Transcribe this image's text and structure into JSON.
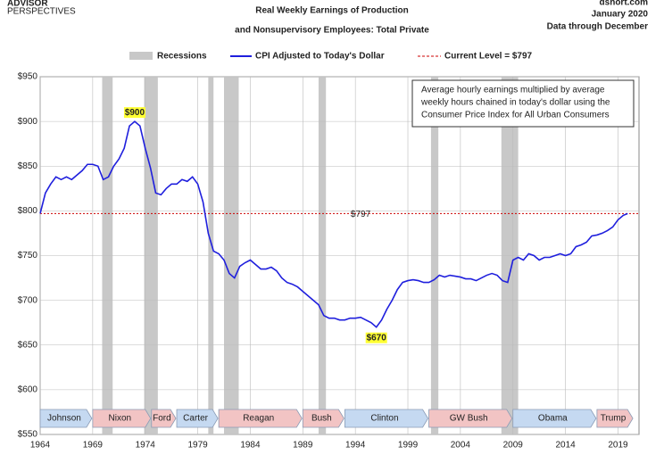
{
  "header": {
    "logo": [
      "ADVISOR",
      "PERSPECTIVES"
    ],
    "source": [
      "dshort.com",
      "January 2020",
      "Data through December"
    ]
  },
  "chart_data": {
    "type": "line",
    "title": [
      "Real Weekly Earnings of Production",
      "and Nonsupervisory Employees: Total Private"
    ],
    "legend": {
      "recessions": "Recessions",
      "current": "Current Level = $797"
    },
    "note": [
      "Average hourly earnings multiplied by average",
      "weekly hours chained in today's dollar using the",
      "Consumer Price Index for All Urban Consumers"
    ],
    "xlim": [
      1964,
      2021
    ],
    "xticks": [
      1964,
      1969,
      1974,
      1979,
      1984,
      1989,
      1994,
      1999,
      2004,
      2009,
      2014,
      2019
    ],
    "ylim": [
      550,
      950
    ],
    "yticks": [
      {
        "value": 550,
        "label": "$550"
      },
      {
        "value": 600,
        "label": "$600"
      },
      {
        "value": 650,
        "label": "$650"
      },
      {
        "value": 700,
        "label": "$700"
      },
      {
        "value": 750,
        "label": "$750"
      },
      {
        "value": 800,
        "label": "$800"
      },
      {
        "value": 850,
        "label": "$850"
      },
      {
        "value": 900,
        "label": "$900"
      },
      {
        "value": 950,
        "label": "$950"
      }
    ],
    "grid": true,
    "recessions": [
      [
        1969.9,
        1970.9
      ],
      [
        1973.9,
        1975.2
      ],
      [
        1980.0,
        1980.5
      ],
      [
        1981.5,
        1982.9
      ],
      [
        1990.5,
        1991.2
      ],
      [
        2001.2,
        2001.9
      ],
      [
        2007.9,
        2009.5
      ]
    ],
    "recession_color": "#c8c8c8",
    "reference": {
      "value": 797,
      "label": "$797",
      "color": "#cc0000"
    },
    "annotations": [
      {
        "text": "$900",
        "x": 1973,
        "y": 900
      },
      {
        "text": "$670",
        "x": 1996,
        "y": 670
      }
    ],
    "presidents": [
      {
        "name": "Johnson",
        "start": 1964,
        "end": 1969,
        "color": "#c5d9f1"
      },
      {
        "name": "Nixon",
        "start": 1969,
        "end": 1974.6,
        "color": "#f2c4c4"
      },
      {
        "name": "Ford",
        "start": 1974.6,
        "end": 1977,
        "color": "#f2c4c4"
      },
      {
        "name": "Carter",
        "start": 1977,
        "end": 1981,
        "color": "#c5d9f1"
      },
      {
        "name": "Reagan",
        "start": 1981,
        "end": 1989,
        "color": "#f2c4c4"
      },
      {
        "name": "Bush",
        "start": 1989,
        "end": 1993,
        "color": "#f2c4c4"
      },
      {
        "name": "Clinton",
        "start": 1993,
        "end": 2001,
        "color": "#c5d9f1"
      },
      {
        "name": "GW Bush",
        "start": 2001,
        "end": 2009,
        "color": "#f2c4c4"
      },
      {
        "name": "Obama",
        "start": 2009,
        "end": 2017,
        "color": "#c5d9f1"
      },
      {
        "name": "Trump",
        "start": 2017,
        "end": 2020.5,
        "color": "#f2c4c4"
      }
    ],
    "x": [
      1964,
      1964.5,
      1965,
      1965.5,
      1966,
      1966.5,
      1967,
      1967.5,
      1968,
      1968.5,
      1969,
      1969.5,
      1970,
      1970.5,
      1971,
      1971.5,
      1972,
      1972.5,
      1973,
      1973.5,
      1974,
      1974.5,
      1975,
      1975.5,
      1976,
      1976.5,
      1977,
      1977.5,
      1978,
      1978.5,
      1979,
      1979.5,
      1980,
      1980.5,
      1981,
      1981.5,
      1982,
      1982.5,
      1983,
      1983.5,
      1984,
      1984.5,
      1985,
      1985.5,
      1986,
      1986.5,
      1987,
      1987.5,
      1988,
      1988.5,
      1989,
      1989.5,
      1990,
      1990.5,
      1991,
      1991.5,
      1992,
      1992.5,
      1993,
      1993.5,
      1994,
      1994.5,
      1995,
      1995.5,
      1996,
      1996.5,
      1997,
      1997.5,
      1998,
      1998.5,
      1999,
      1999.5,
      2000,
      2000.5,
      2001,
      2001.5,
      2002,
      2002.5,
      2003,
      2003.5,
      2004,
      2004.5,
      2005,
      2005.5,
      2006,
      2006.5,
      2007,
      2007.5,
      2008,
      2008.5,
      2009,
      2009.5,
      2010,
      2010.5,
      2011,
      2011.5,
      2012,
      2012.5,
      2013,
      2013.5,
      2014,
      2014.5,
      2015,
      2015.5,
      2016,
      2016.5,
      2017,
      2017.5,
      2018,
      2018.5,
      2019,
      2019.5,
      2019.92
    ],
    "series": [
      {
        "name": "CPI Adjusted to Today's Dollar",
        "color": "#1f1fdd",
        "values": [
          797,
          820,
          830,
          838,
          835,
          838,
          835,
          840,
          845,
          852,
          852,
          850,
          835,
          838,
          850,
          858,
          870,
          895,
          900,
          895,
          870,
          848,
          820,
          818,
          825,
          830,
          830,
          835,
          833,
          838,
          830,
          810,
          775,
          755,
          752,
          745,
          730,
          725,
          738,
          742,
          745,
          740,
          735,
          735,
          737,
          733,
          725,
          720,
          718,
          715,
          710,
          705,
          700,
          695,
          683,
          680,
          680,
          678,
          678,
          680,
          680,
          681,
          678,
          675,
          670,
          678,
          690,
          700,
          712,
          720,
          722,
          723,
          722,
          720,
          720,
          723,
          728,
          726,
          728,
          727,
          726,
          724,
          724,
          722,
          725,
          728,
          730,
          728,
          722,
          720,
          745,
          748,
          745,
          752,
          750,
          745,
          748,
          748,
          750,
          752,
          750,
          752,
          760,
          762,
          765,
          772,
          773,
          775,
          778,
          782,
          790,
          795,
          797
        ]
      }
    ]
  }
}
